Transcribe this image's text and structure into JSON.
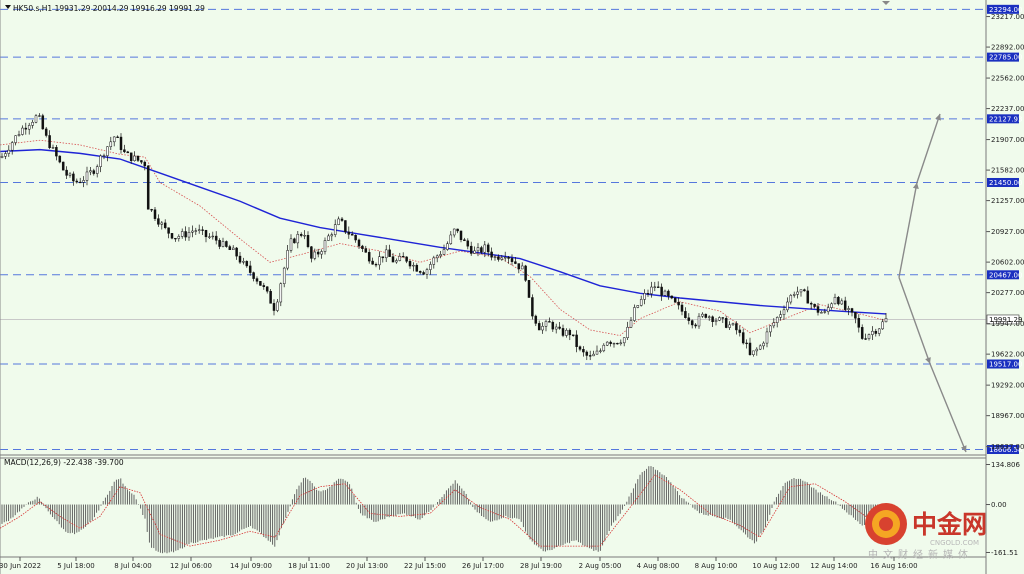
{
  "header": {
    "title": "HK50.s,H1  19931.29 20014.29 19916.29 19991.29"
  },
  "main_chart": {
    "price_range": [
      18580,
      23340
    ],
    "y_ticks": [
      "23217.00",
      "22892.00",
      "22562.00",
      "22237.00",
      "21907.00",
      "21582.00",
      "21257.00",
      "20927.00",
      "20602.00",
      "20277.00",
      "19947.00",
      "19622.00",
      "19292.00",
      "18967.00",
      "18637.00"
    ],
    "y_tick_values": [
      23217,
      22892,
      22562,
      22237,
      21907,
      21582,
      21257,
      20927,
      20602,
      20277,
      19947,
      19622,
      19292,
      18967,
      18637
    ],
    "levels": [
      {
        "label": "23294.00",
        "value": 23294
      },
      {
        "label": "22785.00",
        "value": 22785
      },
      {
        "label": "22127.93",
        "value": 22127.93
      },
      {
        "label": "21450.00",
        "value": 21450
      },
      {
        "label": "20467.00",
        "value": 20467
      },
      {
        "label": "19517.00",
        "value": 19517
      },
      {
        "label": "18606.58",
        "value": 18606.58
      }
    ],
    "current_price": {
      "label": "19991.29",
      "value": 19991.29
    },
    "price_path": [
      [
        0,
        21700
      ],
      [
        10,
        21850
      ],
      [
        20,
        22000
      ],
      [
        30,
        22100
      ],
      [
        38,
        22160
      ],
      [
        45,
        21950
      ],
      [
        55,
        21750
      ],
      [
        65,
        21550
      ],
      [
        75,
        21450
      ],
      [
        85,
        21500
      ],
      [
        95,
        21600
      ],
      [
        105,
        21800
      ],
      [
        115,
        21950
      ],
      [
        125,
        21750
      ],
      [
        135,
        21700
      ],
      [
        145,
        21650
      ],
      [
        148,
        21200
      ],
      [
        155,
        21100
      ],
      [
        165,
        20950
      ],
      [
        175,
        20870
      ],
      [
        185,
        20900
      ],
      [
        195,
        20950
      ],
      [
        205,
        20880
      ],
      [
        215,
        20850
      ],
      [
        225,
        20760
      ],
      [
        235,
        20700
      ],
      [
        245,
        20550
      ],
      [
        255,
        20450
      ],
      [
        265,
        20300
      ],
      [
        275,
        20100
      ],
      [
        280,
        20350
      ],
      [
        290,
        20800
      ],
      [
        300,
        20900
      ],
      [
        305,
        20920
      ],
      [
        310,
        20620
      ],
      [
        320,
        20720
      ],
      [
        330,
        20900
      ],
      [
        340,
        21050
      ],
      [
        345,
        20950
      ],
      [
        355,
        20850
      ],
      [
        365,
        20700
      ],
      [
        375,
        20600
      ],
      [
        385,
        20700
      ],
      [
        395,
        20600
      ],
      [
        405,
        20650
      ],
      [
        415,
        20550
      ],
      [
        425,
        20500
      ],
      [
        435,
        20650
      ],
      [
        445,
        20750
      ],
      [
        455,
        20950
      ],
      [
        465,
        20800
      ],
      [
        475,
        20700
      ],
      [
        485,
        20750
      ],
      [
        495,
        20650
      ],
      [
        505,
        20700
      ],
      [
        515,
        20600
      ],
      [
        525,
        20500
      ],
      [
        530,
        20100
      ],
      [
        540,
        19900
      ],
      [
        550,
        19950
      ],
      [
        560,
        19850
      ],
      [
        570,
        19850
      ],
      [
        580,
        19650
      ],
      [
        590,
        19580
      ],
      [
        600,
        19650
      ],
      [
        605,
        19780
      ],
      [
        615,
        19750
      ],
      [
        625,
        19800
      ],
      [
        635,
        20100
      ],
      [
        645,
        20250
      ],
      [
        655,
        20350
      ],
      [
        665,
        20250
      ],
      [
        675,
        20150
      ],
      [
        685,
        20050
      ],
      [
        695,
        19950
      ],
      [
        705,
        20050
      ],
      [
        715,
        20000
      ],
      [
        725,
        19950
      ],
      [
        735,
        19900
      ],
      [
        745,
        19750
      ],
      [
        750,
        19600
      ],
      [
        760,
        19700
      ],
      [
        770,
        19900
      ],
      [
        780,
        20050
      ],
      [
        785,
        20150
      ],
      [
        795,
        20300
      ],
      [
        805,
        20250
      ],
      [
        815,
        20100
      ],
      [
        825,
        20050
      ],
      [
        835,
        20250
      ],
      [
        845,
        20100
      ],
      [
        855,
        20000
      ],
      [
        862,
        19800
      ],
      [
        870,
        19850
      ],
      [
        878,
        19900
      ],
      [
        886,
        19991
      ]
    ],
    "ma_blue": [
      [
        0,
        21780
      ],
      [
        40,
        21800
      ],
      [
        80,
        21760
      ],
      [
        120,
        21700
      ],
      [
        160,
        21550
      ],
      [
        200,
        21400
      ],
      [
        240,
        21250
      ],
      [
        280,
        21070
      ],
      [
        320,
        20970
      ],
      [
        360,
        20900
      ],
      [
        400,
        20830
      ],
      [
        440,
        20760
      ],
      [
        480,
        20700
      ],
      [
        520,
        20640
      ],
      [
        560,
        20500
      ],
      [
        600,
        20350
      ],
      [
        640,
        20270
      ],
      [
        680,
        20220
      ],
      [
        720,
        20180
      ],
      [
        760,
        20140
      ],
      [
        800,
        20110
      ],
      [
        840,
        20080
      ],
      [
        886,
        20050
      ]
    ],
    "ma_red": [
      [
        0,
        21850
      ],
      [
        40,
        21900
      ],
      [
        80,
        21850
      ],
      [
        120,
        21750
      ],
      [
        145,
        21720
      ],
      [
        160,
        21450
      ],
      [
        200,
        21200
      ],
      [
        240,
        20850
      ],
      [
        270,
        20600
      ],
      [
        300,
        20680
      ],
      [
        340,
        20800
      ],
      [
        380,
        20720
      ],
      [
        420,
        20600
      ],
      [
        460,
        20720
      ],
      [
        500,
        20650
      ],
      [
        530,
        20450
      ],
      [
        560,
        20100
      ],
      [
        590,
        19880
      ],
      [
        620,
        19820
      ],
      [
        640,
        20000
      ],
      [
        680,
        20180
      ],
      [
        720,
        20080
      ],
      [
        750,
        19850
      ],
      [
        780,
        19980
      ],
      [
        820,
        20150
      ],
      [
        860,
        20050
      ],
      [
        886,
        19980
      ]
    ],
    "projection": {
      "origin": [
        899,
        20440
      ],
      "up": [
        [
          899,
          20440
        ],
        [
          917,
          21450
        ],
        [
          940,
          22180
        ]
      ],
      "down": [
        [
          899,
          20440
        ],
        [
          930,
          19520
        ],
        [
          966,
          18580
        ]
      ]
    },
    "x_labels": [
      "30 Jun 2022",
      "5 Jul 18:00",
      "8 Jul 04:00",
      "12 Jul 06:00",
      "14 Jul 09:00",
      "18 Jul 11:00",
      "20 Jul 13:00",
      "22 Jul 15:00",
      "26 Jul 17:00",
      "28 Jul 19:00",
      "2 Aug 05:00",
      "4 Aug 08:00",
      "8 Aug 10:00",
      "10 Aug 12:00",
      "12 Aug 14:00",
      "16 Aug 16:00"
    ],
    "x_label_pos": [
      20,
      76,
      133,
      191,
      251,
      309,
      367,
      425,
      483,
      541,
      600,
      658,
      716,
      776,
      834,
      894
    ]
  },
  "macd": {
    "title": "MACD(12,26,9) -22.438 -39.700",
    "range": [
      -170,
      150
    ],
    "y_ticks": [
      "134.806",
      "0.00",
      "-161.51"
    ],
    "y_tick_values": [
      134.806,
      0,
      -161.51
    ],
    "hist_path": [
      [
        0,
        -70
      ],
      [
        10,
        -50
      ],
      [
        20,
        -20
      ],
      [
        30,
        10
      ],
      [
        38,
        25
      ],
      [
        45,
        -10
      ],
      [
        55,
        -50
      ],
      [
        65,
        -90
      ],
      [
        75,
        -100
      ],
      [
        85,
        -80
      ],
      [
        95,
        -40
      ],
      [
        105,
        20
      ],
      [
        115,
        80
      ],
      [
        120,
        90
      ],
      [
        125,
        60
      ],
      [
        135,
        30
      ],
      [
        145,
        -50
      ],
      [
        150,
        -140
      ],
      [
        160,
        -165
      ],
      [
        175,
        -160
      ],
      [
        190,
        -130
      ],
      [
        205,
        -120
      ],
      [
        220,
        -110
      ],
      [
        235,
        -100
      ],
      [
        250,
        -70
      ],
      [
        265,
        -110
      ],
      [
        275,
        -140
      ],
      [
        285,
        -50
      ],
      [
        295,
        40
      ],
      [
        305,
        95
      ],
      [
        312,
        70
      ],
      [
        320,
        40
      ],
      [
        330,
        60
      ],
      [
        340,
        90
      ],
      [
        350,
        70
      ],
      [
        360,
        -30
      ],
      [
        375,
        -60
      ],
      [
        390,
        -40
      ],
      [
        405,
        -30
      ],
      [
        420,
        -50
      ],
      [
        430,
        -20
      ],
      [
        445,
        40
      ],
      [
        455,
        80
      ],
      [
        465,
        40
      ],
      [
        475,
        -20
      ],
      [
        490,
        -60
      ],
      [
        505,
        -40
      ],
      [
        520,
        -50
      ],
      [
        530,
        -120
      ],
      [
        545,
        -160
      ],
      [
        560,
        -140
      ],
      [
        575,
        -120
      ],
      [
        590,
        -150
      ],
      [
        600,
        -160
      ],
      [
        610,
        -80
      ],
      [
        620,
        -30
      ],
      [
        630,
        30
      ],
      [
        640,
        100
      ],
      [
        650,
        130
      ],
      [
        660,
        110
      ],
      [
        670,
        80
      ],
      [
        680,
        30
      ],
      [
        690,
        0
      ],
      [
        700,
        -30
      ],
      [
        715,
        -40
      ],
      [
        730,
        -50
      ],
      [
        745,
        -100
      ],
      [
        755,
        -130
      ],
      [
        765,
        -80
      ],
      [
        775,
        20
      ],
      [
        785,
        70
      ],
      [
        795,
        90
      ],
      [
        805,
        80
      ],
      [
        815,
        50
      ],
      [
        825,
        30
      ],
      [
        835,
        10
      ],
      [
        845,
        -20
      ],
      [
        855,
        -50
      ],
      [
        862,
        -70
      ],
      [
        872,
        -60
      ],
      [
        880,
        -40
      ],
      [
        886,
        -22
      ]
    ],
    "signal_path": [
      [
        0,
        -80
      ],
      [
        20,
        -40
      ],
      [
        40,
        10
      ],
      [
        60,
        -40
      ],
      [
        80,
        -80
      ],
      [
        100,
        -40
      ],
      [
        120,
        60
      ],
      [
        140,
        40
      ],
      [
        160,
        -100
      ],
      [
        190,
        -140
      ],
      [
        220,
        -120
      ],
      [
        250,
        -90
      ],
      [
        275,
        -110
      ],
      [
        300,
        30
      ],
      [
        320,
        60
      ],
      [
        345,
        70
      ],
      [
        370,
        -30
      ],
      [
        400,
        -40
      ],
      [
        430,
        -30
      ],
      [
        455,
        50
      ],
      [
        480,
        -10
      ],
      [
        510,
        -50
      ],
      [
        540,
        -140
      ],
      [
        570,
        -140
      ],
      [
        600,
        -140
      ],
      [
        630,
        -10
      ],
      [
        655,
        100
      ],
      [
        680,
        50
      ],
      [
        710,
        -30
      ],
      [
        740,
        -70
      ],
      [
        760,
        -110
      ],
      [
        790,
        60
      ],
      [
        815,
        70
      ],
      [
        845,
        10
      ],
      [
        870,
        -50
      ],
      [
        886,
        -40
      ]
    ]
  },
  "watermark": {
    "brand_cn": "中金网",
    "brand_en": "CNGOLD.COM",
    "tagline": "中文财经新媒体",
    "brand_color": "#c9362a"
  },
  "colors": {
    "background": "#f0fbec",
    "grid_dash": "#5577dd",
    "level_tag": "#1a30c0",
    "ma_blue": "#1f24d6",
    "ma_red": "#d65050",
    "candle": "#111111",
    "projection": "#8a8a8a"
  }
}
